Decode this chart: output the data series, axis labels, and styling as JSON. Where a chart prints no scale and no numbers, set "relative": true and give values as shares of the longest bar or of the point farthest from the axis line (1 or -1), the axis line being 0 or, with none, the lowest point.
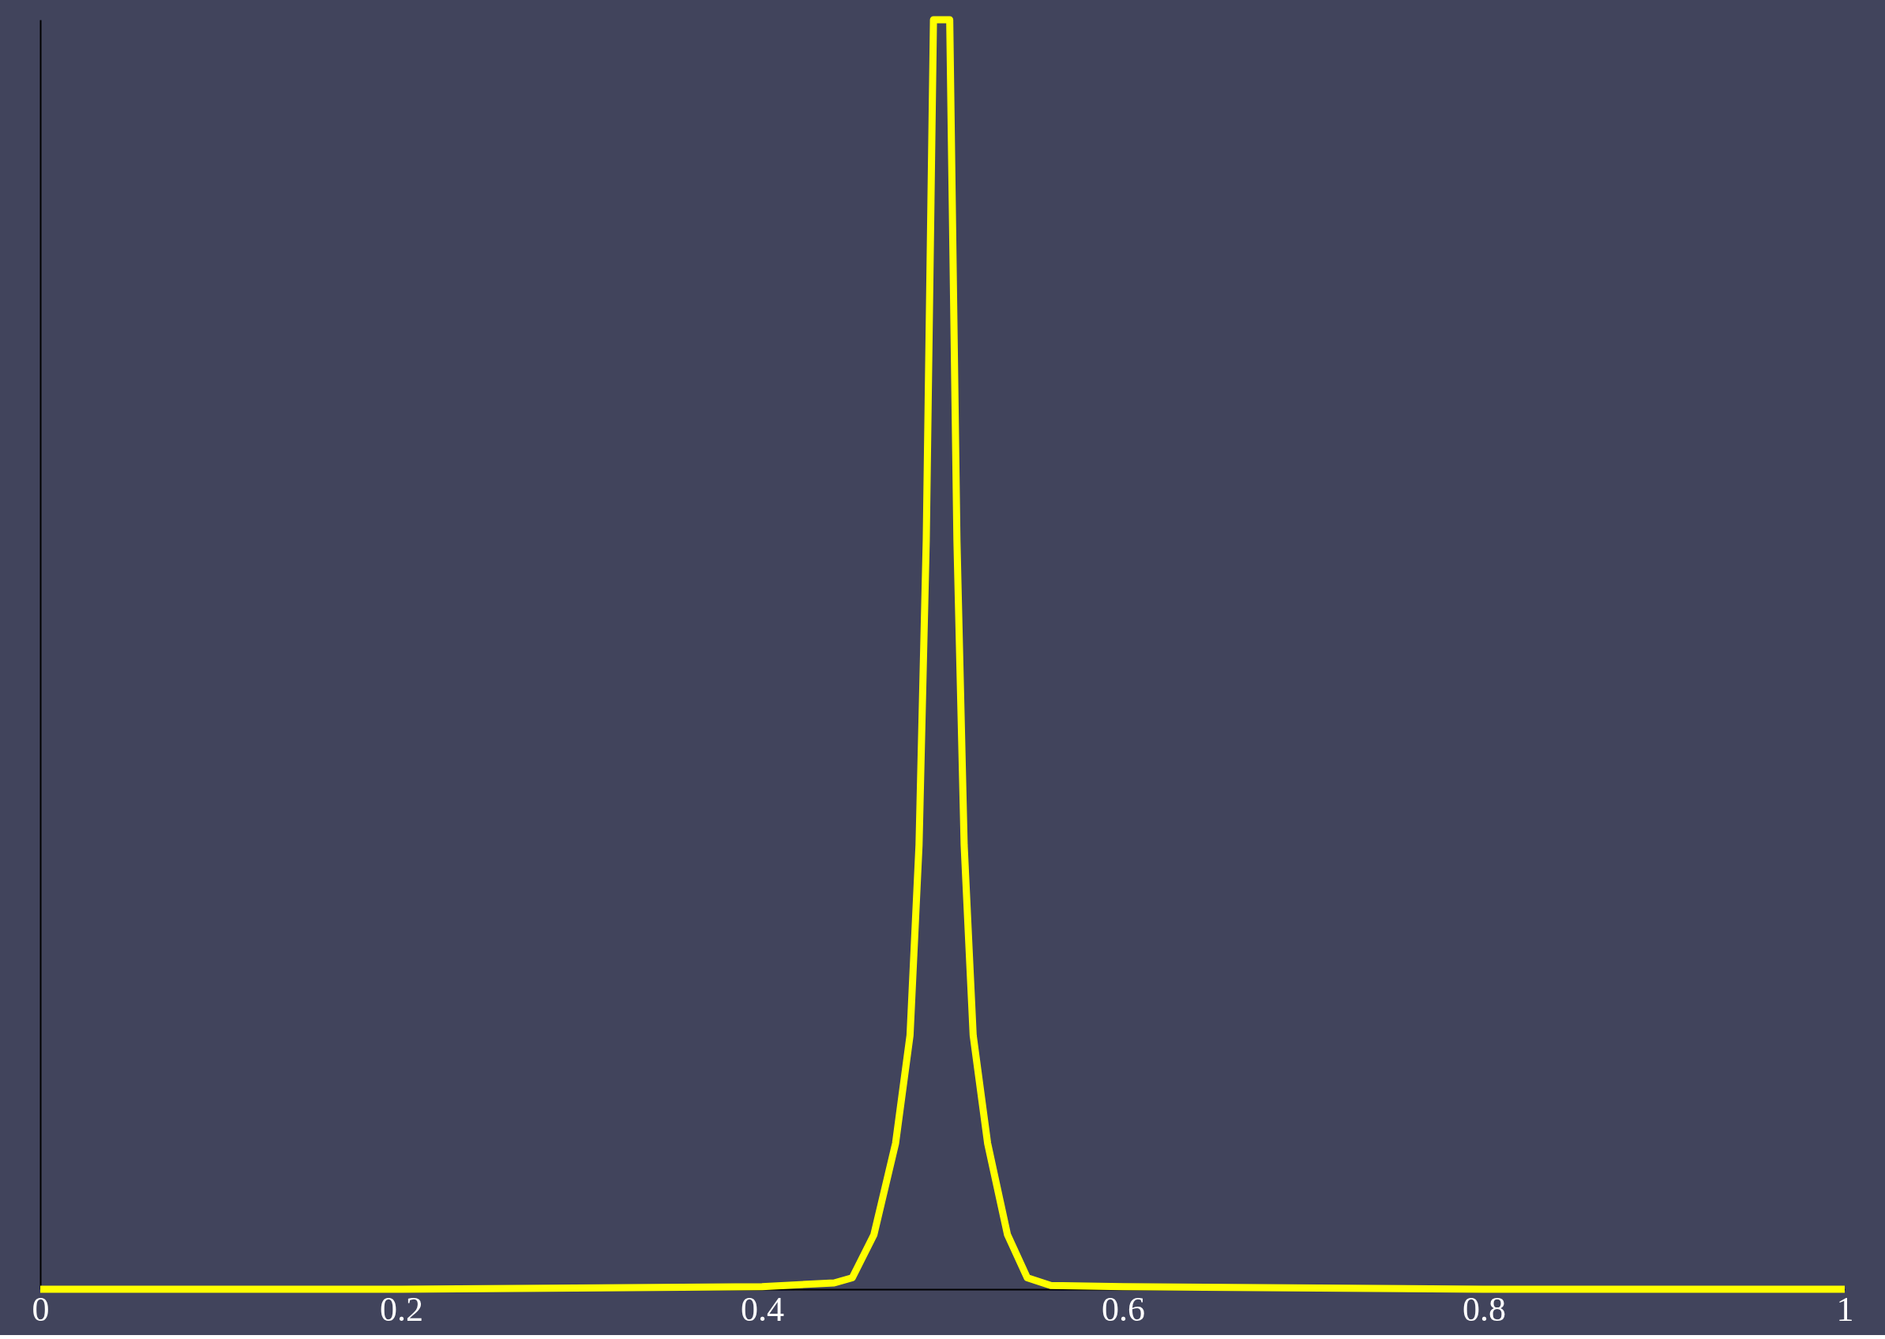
{
  "chart_data": {
    "type": "line",
    "relative": true,
    "xlim": [
      0,
      1
    ],
    "xticks": [
      0,
      0.2,
      0.4,
      0.6,
      0.8,
      1
    ],
    "tick_labels": "x",
    "grid": false,
    "line_style": "solid",
    "marker": "none",
    "series": [
      {
        "color": "#ffff00",
        "x": [
          0,
          0.2,
          0.4,
          0.44,
          0.45,
          0.462,
          0.474,
          0.482,
          0.487,
          0.491,
          0.495,
          0.5,
          0.504,
          0.508,
          0.512,
          0.517,
          0.525,
          0.536,
          0.547,
          0.56,
          0.6,
          0.8,
          1
        ],
        "values": [
          0,
          0,
          0.002,
          0.005,
          0.009,
          0.043,
          0.115,
          0.2,
          0.35,
          0.59,
          1,
          1,
          1,
          0.59,
          0.35,
          0.2,
          0.115,
          0.043,
          0.009,
          0.003,
          0.002,
          0,
          0
        ]
      }
    ]
  }
}
